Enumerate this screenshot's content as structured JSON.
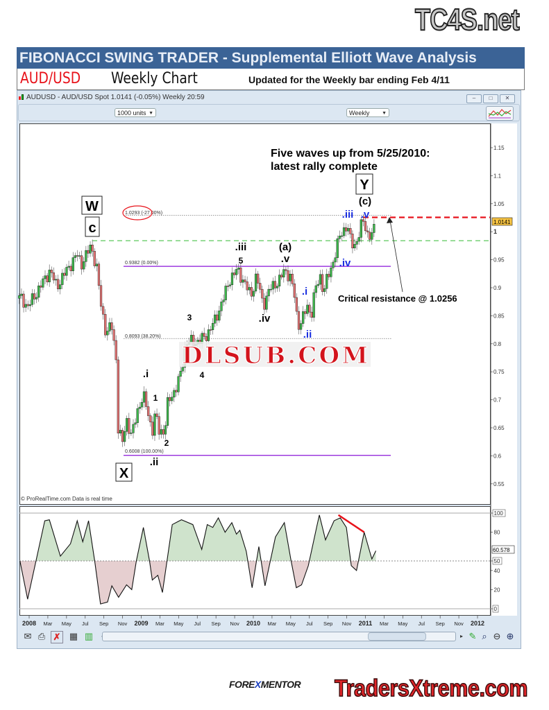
{
  "header": {
    "site_logo": "TC4S.net",
    "banner_title": "FIBONACCI SWING TRADER - Supplemental Elliott Wave Analysis",
    "pair": "AUD/USD",
    "timeframe": "Weekly Chart",
    "updated": "Updated for the Weekly bar ending Feb 4/11"
  },
  "window": {
    "title": "AUDUSD - AUD/USD Spot   1.0141 (-0.05%)   Weekly  20:59",
    "units_dropdown": "1000 units",
    "period_dropdown": "Weekly",
    "minimize": "–",
    "restore": "□",
    "close": "✕",
    "copyright": "© ProRealTime.com  Data is real time"
  },
  "toolbar_icons": [
    "mail-icon",
    "print-icon",
    "cursor-cross-icon",
    "calculator-icon",
    "indicator-icon"
  ],
  "right_toolbar_icons": [
    "scroll-right-icon",
    "drawing-icon",
    "zoom-fit-icon",
    "zoom-out-icon",
    "zoom-in-icon"
  ],
  "watermark": "DLSUB.COM",
  "footer": {
    "forexmentor_a": "FORE",
    "forexmentor_x": "X",
    "forexmentor_b": "MENTOR",
    "tradersxtreme": "TradersXtreme.com"
  },
  "colors": {
    "up": "#3cb64a",
    "down": "#e07272",
    "banner": "#3b6396",
    "fib_purple": "#8a14d8",
    "resistance_red": "#e8121a",
    "green_dash": "#33bb33",
    "osc_up_fill": "#cfe3cc",
    "osc_down_fill": "#e6cfd0",
    "last_price_tag": "#f5c242"
  },
  "chart_data": [
    {
      "type": "candlestick",
      "symbol": "AUDUSD",
      "ylim": [
        0.53,
        1.18
      ],
      "xlim": [
        "2007-11-20",
        "2012-01-20"
      ],
      "y_ticks": [
        "1.15",
        "1.1",
        "1.05",
        "1",
        "0.95",
        "0.9",
        "0.85",
        "0.8",
        "0.75",
        "0.7",
        "0.65",
        "0.6",
        "0.55"
      ],
      "x_ticks": [
        "2008",
        "Mar",
        "May",
        "Jul",
        "Sep",
        "Nov",
        "2009",
        "Mar",
        "May",
        "Jul",
        "Sep",
        "Nov",
        "2010",
        "Mar",
        "May",
        "Jul",
        "Sep",
        "Nov",
        "2011",
        "Mar",
        "May",
        "Jul",
        "Sep",
        "Nov",
        "2012"
      ],
      "last_price": "1.0141",
      "closes": [
        [
          "2007-12-09",
          0.881
        ],
        [
          "2007-12-27",
          0.865
        ],
        [
          "2008-02-06",
          0.902
        ],
        [
          "2008-03-09",
          0.931
        ],
        [
          "2008-03-31",
          0.902
        ],
        [
          "2008-05-07",
          0.935
        ],
        [
          "2008-06-05",
          0.959
        ],
        [
          "2008-06-20",
          0.943
        ],
        [
          "2008-07-22",
          0.975
        ],
        [
          "2008-08-10",
          0.931
        ],
        [
          "2008-08-21",
          0.873
        ],
        [
          "2008-09-08",
          0.82
        ],
        [
          "2008-09-26",
          0.832
        ],
        [
          "2008-10-11",
          0.774
        ],
        [
          "2008-10-18",
          0.646
        ],
        [
          "2008-11-02",
          0.622
        ],
        [
          "2008-11-13",
          0.667
        ],
        [
          "2008-12-01",
          0.634
        ],
        [
          "2008-12-19",
          0.68
        ],
        [
          "2009-01-07",
          0.708
        ],
        [
          "2009-01-26",
          0.671
        ],
        [
          "2009-02-06",
          0.643
        ],
        [
          "2009-02-16",
          0.675
        ],
        [
          "2009-02-27",
          0.646
        ],
        [
          "2009-03-18",
          0.643
        ],
        [
          "2009-03-29",
          0.696
        ],
        [
          "2009-04-27",
          0.724
        ],
        [
          "2009-05-11",
          0.749
        ],
        [
          "2009-05-26",
          0.803
        ],
        [
          "2009-06-28",
          0.803
        ],
        [
          "2009-07-27",
          0.811
        ],
        [
          "2009-08-29",
          0.841
        ],
        [
          "2009-10-04",
          0.894
        ],
        [
          "2009-10-19",
          0.919
        ],
        [
          "2009-11-10",
          0.931
        ],
        [
          "2009-11-28",
          0.915
        ],
        [
          "2009-12-24",
          0.885
        ],
        [
          "2010-01-11",
          0.922
        ],
        [
          "2010-02-02",
          0.869
        ],
        [
          "2010-02-24",
          0.898
        ],
        [
          "2010-03-29",
          0.915
        ],
        [
          "2010-04-12",
          0.931
        ],
        [
          "2010-04-30",
          0.922
        ],
        [
          "2010-05-15",
          0.885
        ],
        [
          "2010-05-26",
          0.832
        ],
        [
          "2010-06-13",
          0.848
        ],
        [
          "2010-07-01",
          0.873
        ],
        [
          "2010-07-05",
          0.841
        ],
        [
          "2010-07-20",
          0.894
        ],
        [
          "2010-08-07",
          0.919
        ],
        [
          "2010-08-18",
          0.894
        ],
        [
          "2010-08-29",
          0.915
        ],
        [
          "2010-09-12",
          0.935
        ],
        [
          "2010-09-23",
          0.959
        ],
        [
          "2010-10-08",
          0.989
        ],
        [
          "2010-11-03",
          1.015
        ],
        [
          "2010-11-10",
          0.989
        ],
        [
          "2010-11-24",
          0.972
        ],
        [
          "2010-12-09",
          0.993
        ],
        [
          "2010-12-24",
          1.02
        ],
        [
          "2011-01-07",
          0.997
        ],
        [
          "2011-01-22",
          0.993
        ],
        [
          "2011-02-04",
          1.0141
        ]
      ],
      "levels": [
        {
          "label": "1.0293 (-27.00%)",
          "value": 1.0293,
          "style": "dotted-gray"
        },
        {
          "label": "0.9382 (0.00%)",
          "value": 0.9382,
          "style": "solid-purple"
        },
        {
          "label": "0.8093 (38.20%)",
          "value": 0.8093,
          "style": "dotted-gray"
        },
        {
          "label": "0.6008 (100.00%)",
          "value": 0.6008,
          "style": "solid-purple"
        },
        {
          "label": "",
          "value": 0.984,
          "style": "dashed-green"
        },
        {
          "label": "",
          "value": 1.0256,
          "style": "dashed-red"
        }
      ],
      "annotations": {
        "headline_1": "Five waves up from 5/25/2010:",
        "headline_2": "latest rally complete",
        "critical": "Critical resistance @ 1.0256",
        "W": "W",
        "c": "c",
        "X": "X",
        "Y": "Y",
        "c_paren": "(c)",
        "a_paren": "(a)",
        "iii_black": ".iii",
        "five": "5",
        "v_black": ".v",
        "iv_black": ".iv",
        "three": "3",
        "four": "4",
        "i_black": ".i",
        "one": "1",
        "two": "2",
        "ii_black": ".ii",
        "iii_blue": ".iii",
        "v_blue": ".v",
        "iv_blue": ".iv",
        "i_blue": ".i",
        "ii_blue": ".ii"
      }
    },
    {
      "type": "area",
      "ylim": [
        0,
        100
      ],
      "y_ticks": [
        "100",
        "80",
        "50",
        "40",
        "20",
        "0"
      ],
      "midline": 50,
      "last_value": "60.578",
      "values": [
        [
          "2007-12-02",
          50
        ],
        [
          "2007-12-27",
          10
        ],
        [
          "2008-02-21",
          92
        ],
        [
          "2008-03-07",
          93
        ],
        [
          "2008-04-12",
          55
        ],
        [
          "2008-05-15",
          68
        ],
        [
          "2008-06-06",
          92
        ],
        [
          "2008-06-24",
          70
        ],
        [
          "2008-07-13",
          92
        ],
        [
          "2008-08-02",
          50
        ],
        [
          "2008-08-21",
          5
        ],
        [
          "2008-09-13",
          7
        ],
        [
          "2008-09-27",
          24
        ],
        [
          "2008-10-19",
          12
        ],
        [
          "2008-11-14",
          25
        ],
        [
          "2008-12-01",
          20
        ],
        [
          "2008-12-16",
          50
        ],
        [
          "2009-01-08",
          85
        ],
        [
          "2009-01-28",
          50
        ],
        [
          "2009-02-06",
          30
        ],
        [
          "2009-02-24",
          35
        ],
        [
          "2009-03-11",
          17
        ],
        [
          "2009-04-12",
          88
        ],
        [
          "2009-05-12",
          93
        ],
        [
          "2009-06-18",
          88
        ],
        [
          "2009-07-17",
          62
        ],
        [
          "2009-08-04",
          88
        ],
        [
          "2009-08-22",
          85
        ],
        [
          "2009-09-09",
          95
        ],
        [
          "2009-10-01",
          80
        ],
        [
          "2009-10-23",
          90
        ],
        [
          "2009-11-07",
          78
        ],
        [
          "2009-11-18",
          82
        ],
        [
          "2009-12-09",
          60
        ],
        [
          "2009-12-28",
          22
        ],
        [
          "2010-01-19",
          65
        ],
        [
          "2010-02-08",
          24
        ],
        [
          "2010-03-14",
          75
        ],
        [
          "2010-04-12",
          90
        ],
        [
          "2010-05-04",
          50
        ],
        [
          "2010-05-21",
          22
        ],
        [
          "2010-06-07",
          25
        ],
        [
          "2010-06-29",
          45
        ],
        [
          "2010-07-28",
          88
        ],
        [
          "2010-08-04",
          98
        ],
        [
          "2010-08-24",
          72
        ],
        [
          "2010-09-21",
          92
        ],
        [
          "2010-10-11",
          95
        ],
        [
          "2010-10-31",
          85
        ],
        [
          "2010-11-16",
          45
        ],
        [
          "2010-12-03",
          40
        ],
        [
          "2010-12-28",
          80
        ],
        [
          "2011-01-22",
          52
        ],
        [
          "2011-02-04",
          60.578
        ]
      ],
      "divergence_line": [
        [
          "2010-10-05",
          98
        ],
        [
          "2010-12-28",
          80
        ]
      ]
    }
  ]
}
